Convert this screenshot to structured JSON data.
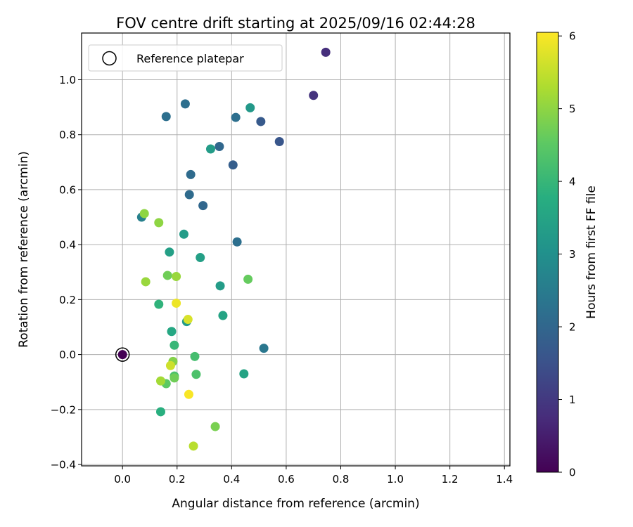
{
  "chart_data": {
    "type": "scatter",
    "title": "FOV centre drift starting at 2025/09/16 02:44:28",
    "xlabel": "Angular distance from reference (arcmin)",
    "ylabel": "Rotation from reference (arcmin)",
    "xlim": [
      -0.15,
      1.42
    ],
    "ylim": [
      -0.405,
      1.17
    ],
    "xticks": [
      0.0,
      0.2,
      0.4,
      0.6,
      0.8,
      1.0,
      1.2,
      1.4
    ],
    "xtick_labels": [
      "0.0",
      "0.2",
      "0.4",
      "0.6",
      "0.8",
      "1.0",
      "1.2",
      "1.4"
    ],
    "yticks": [
      -0.4,
      -0.2,
      0.0,
      0.2,
      0.4,
      0.6,
      0.8,
      1.0
    ],
    "ytick_labels": [
      "−0.4",
      "−0.2",
      "0.0",
      "0.2",
      "0.4",
      "0.6",
      "0.8",
      "1.0"
    ],
    "grid": true,
    "colormap": "viridis",
    "colorbar": {
      "label": "Hours from first FF file",
      "range": [
        0,
        6.05
      ],
      "ticks": [
        0,
        1,
        2,
        3,
        4,
        5,
        6
      ],
      "tick_labels": [
        "0",
        "1",
        "2",
        "3",
        "4",
        "5",
        "6"
      ]
    },
    "legend": {
      "position": "top-left",
      "entries": [
        {
          "label": "Reference platepar",
          "marker": "open-circle"
        }
      ]
    },
    "reference_point": {
      "x": 0.0,
      "y": 0.0
    },
    "points": [
      {
        "x": 0.0,
        "y": 0.0,
        "c": 0.0
      },
      {
        "x": 0.745,
        "y": 1.1,
        "c": 0.8
      },
      {
        "x": 0.7,
        "y": 0.943,
        "c": 0.9
      },
      {
        "x": 0.575,
        "y": 0.775,
        "c": 1.6
      },
      {
        "x": 0.507,
        "y": 0.848,
        "c": 1.7
      },
      {
        "x": 0.405,
        "y": 0.69,
        "c": 1.8
      },
      {
        "x": 0.355,
        "y": 0.757,
        "c": 2.0
      },
      {
        "x": 0.415,
        "y": 0.863,
        "c": 2.2
      },
      {
        "x": 0.23,
        "y": 0.912,
        "c": 2.2
      },
      {
        "x": 0.16,
        "y": 0.866,
        "c": 2.2
      },
      {
        "x": 0.25,
        "y": 0.655,
        "c": 2.1
      },
      {
        "x": 0.245,
        "y": 0.582,
        "c": 2.1
      },
      {
        "x": 0.295,
        "y": 0.542,
        "c": 2.0
      },
      {
        "x": 0.42,
        "y": 0.41,
        "c": 2.2
      },
      {
        "x": 0.518,
        "y": 0.023,
        "c": 2.4
      },
      {
        "x": 0.07,
        "y": 0.5,
        "c": 2.6
      },
      {
        "x": 0.468,
        "y": 0.898,
        "c": 3.2
      },
      {
        "x": 0.323,
        "y": 0.748,
        "c": 3.3
      },
      {
        "x": 0.225,
        "y": 0.438,
        "c": 3.3
      },
      {
        "x": 0.172,
        "y": 0.373,
        "c": 3.4
      },
      {
        "x": 0.285,
        "y": 0.353,
        "c": 3.4
      },
      {
        "x": 0.358,
        "y": 0.25,
        "c": 3.3
      },
      {
        "x": 0.368,
        "y": 0.142,
        "c": 3.5
      },
      {
        "x": 0.235,
        "y": 0.12,
        "c": 3.3
      },
      {
        "x": 0.18,
        "y": 0.084,
        "c": 3.6
      },
      {
        "x": 0.445,
        "y": -0.07,
        "c": 3.5
      },
      {
        "x": 0.14,
        "y": -0.208,
        "c": 3.8
      },
      {
        "x": 0.133,
        "y": 0.183,
        "c": 3.9
      },
      {
        "x": 0.19,
        "y": 0.034,
        "c": 4.0
      },
      {
        "x": 0.265,
        "y": -0.007,
        "c": 4.2
      },
      {
        "x": 0.27,
        "y": -0.072,
        "c": 4.3
      },
      {
        "x": 0.19,
        "y": -0.078,
        "c": 4.3
      },
      {
        "x": 0.16,
        "y": -0.106,
        "c": 4.5
      },
      {
        "x": 0.46,
        "y": 0.274,
        "c": 4.6
      },
      {
        "x": 0.165,
        "y": 0.288,
        "c": 4.7
      },
      {
        "x": 0.19,
        "y": -0.085,
        "c": 4.7
      },
      {
        "x": 0.34,
        "y": -0.262,
        "c": 4.8
      },
      {
        "x": 0.185,
        "y": -0.025,
        "c": 4.9
      },
      {
        "x": 0.08,
        "y": 0.513,
        "c": 5.0
      },
      {
        "x": 0.133,
        "y": 0.48,
        "c": 5.0
      },
      {
        "x": 0.085,
        "y": 0.265,
        "c": 5.1
      },
      {
        "x": 0.197,
        "y": 0.284,
        "c": 5.1
      },
      {
        "x": 0.14,
        "y": -0.096,
        "c": 5.2
      },
      {
        "x": 0.26,
        "y": -0.333,
        "c": 5.4
      },
      {
        "x": 0.176,
        "y": -0.04,
        "c": 5.6
      },
      {
        "x": 0.24,
        "y": 0.128,
        "c": 5.7
      },
      {
        "x": 0.197,
        "y": 0.187,
        "c": 5.9
      },
      {
        "x": 0.243,
        "y": -0.145,
        "c": 6.0
      }
    ]
  }
}
